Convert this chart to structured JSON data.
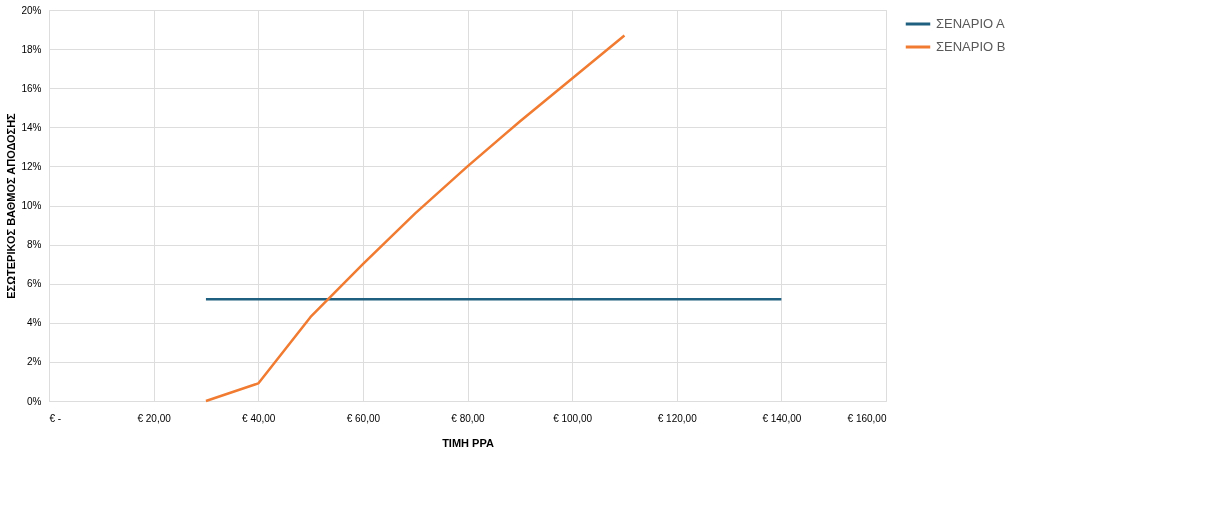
{
  "chart_data": {
    "type": "line",
    "xlabel": "ΤΙΜΗ PPA",
    "ylabel": "ΕΣΩΤΕΡΙΚΟΣ ΒΑΘΜΟΣ ΑΠΟΔΟΣΗΣ",
    "series": [
      {
        "name": "ΣΕΝΑΡΙΟ Α",
        "color": "#1f5f7f",
        "x": [
          30,
          40,
          50,
          60,
          70,
          80,
          90,
          100,
          110,
          120,
          130,
          140
        ],
        "values": [
          5.2,
          5.2,
          5.2,
          5.2,
          5.2,
          5.2,
          5.2,
          5.2,
          5.2,
          5.2,
          5.2,
          5.2
        ]
      },
      {
        "name": "ΣΕΝΑΡΙΟ Β",
        "color": "#f07b31",
        "x": [
          30,
          40,
          50,
          60,
          70,
          80,
          90,
          100,
          110
        ],
        "values": [
          0,
          0.9,
          4.3,
          7.0,
          9.6,
          12.0,
          14.3,
          16.5,
          18.7
        ]
      }
    ],
    "xlim": [
      0,
      160
    ],
    "xticks": [
      {
        "value": 0,
        "label": "€ -"
      },
      {
        "value": 20,
        "label": "€ 20,00"
      },
      {
        "value": 40,
        "label": "€ 40,00"
      },
      {
        "value": 60,
        "label": "€ 60,00"
      },
      {
        "value": 80,
        "label": "€ 80,00"
      },
      {
        "value": 100,
        "label": "€ 100,00"
      },
      {
        "value": 120,
        "label": "€ 120,00"
      },
      {
        "value": 140,
        "label": "€ 140,00"
      },
      {
        "value": 160,
        "label": "€ 160,00"
      }
    ],
    "ylim": [
      0,
      20
    ],
    "yticks": [
      {
        "value": 0,
        "label": "0%"
      },
      {
        "value": 2,
        "label": "2%"
      },
      {
        "value": 4,
        "label": "4%"
      },
      {
        "value": 6,
        "label": "6%"
      },
      {
        "value": 8,
        "label": "8%"
      },
      {
        "value": 10,
        "label": "10%"
      },
      {
        "value": 12,
        "label": "12%"
      },
      {
        "value": 14,
        "label": "14%"
      },
      {
        "value": 16,
        "label": "16%"
      },
      {
        "value": 18,
        "label": "18%"
      },
      {
        "value": 20,
        "label": "20%"
      }
    ],
    "grid": true,
    "legend": "right",
    "line_style": "solid",
    "marker": "none"
  }
}
